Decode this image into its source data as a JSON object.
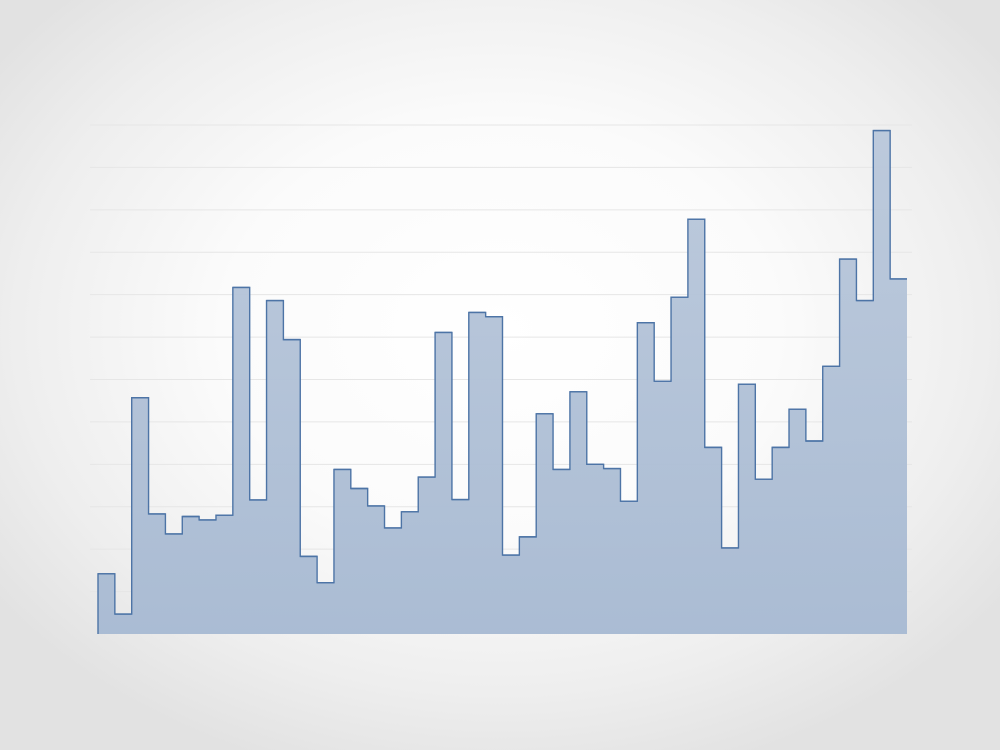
{
  "chart_data": {
    "type": "area",
    "step": "post",
    "grid": true,
    "legend": "none",
    "title": "",
    "xlabel": "",
    "ylabel": "",
    "ylim": [
      0,
      12
    ],
    "xlim": [
      0,
      48
    ],
    "x": [
      0,
      1,
      2,
      3,
      4,
      5,
      6,
      7,
      8,
      9,
      10,
      11,
      12,
      13,
      14,
      15,
      16,
      17,
      18,
      19,
      20,
      21,
      22,
      23,
      24,
      25,
      26,
      27,
      28,
      29,
      30,
      31,
      32,
      33,
      34,
      35,
      36,
      37,
      38,
      39,
      40,
      41,
      42,
      43,
      44,
      45,
      46,
      47
    ],
    "series": [
      {
        "values": [
          1.42,
          0.47,
          5.57,
          2.83,
          2.36,
          2.77,
          2.69,
          2.8,
          8.17,
          3.16,
          7.86,
          6.94,
          1.83,
          1.21,
          3.88,
          3.43,
          3.02,
          2.5,
          2.88,
          3.7,
          7.11,
          3.17,
          7.58,
          7.48,
          1.86,
          2.29,
          5.19,
          3.88,
          5.71,
          4.0,
          3.9,
          3.13,
          7.34,
          5.96,
          7.94,
          9.78,
          4.4,
          2.03,
          5.89,
          3.65,
          4.4,
          5.3,
          4.55,
          6.31,
          8.84,
          7.86,
          11.87,
          8.37
        ],
        "fill": "#b6c5d9",
        "stroke": "#4d74a6"
      }
    ]
  }
}
